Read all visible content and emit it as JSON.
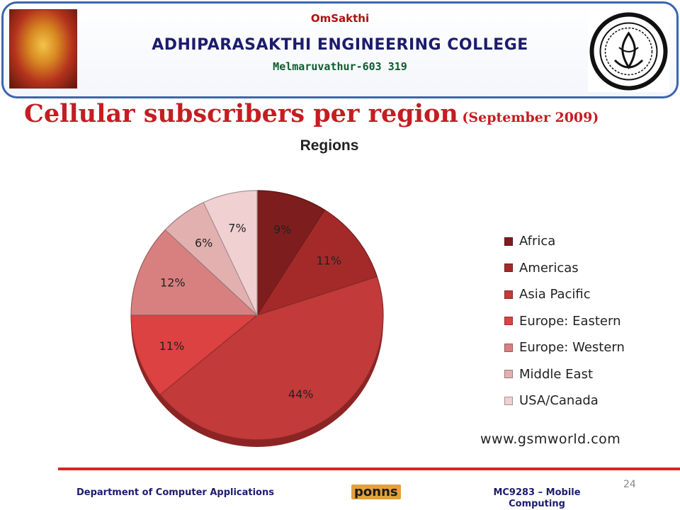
{
  "header": {
    "om_text": "OmSakthi",
    "college_name": "ADHIPARASAKTHI ENGINEERING COLLEGE",
    "location": "Melmaruvathur-603  319",
    "left_logo": "deity-portrait-icon",
    "right_logo": "college-seal-icon"
  },
  "slide": {
    "title": "Cellular subscribers per region",
    "subtitle": "(September 2009)"
  },
  "source": "www.gsmworld.com",
  "footer": {
    "department": "Department of Computer Applications",
    "brand": "ponns",
    "course": "MC9283 – Mobile Computing",
    "page_number": "24"
  },
  "chart_data": {
    "type": "pie",
    "title": "Regions",
    "legend_position": "right",
    "slices": [
      {
        "name": "Africa",
        "value": 9,
        "label": "9%",
        "color": "#7e1d1d"
      },
      {
        "name": "Americas",
        "value": 11,
        "label": "11%",
        "color": "#a42a2a"
      },
      {
        "name": "Asia Pacific",
        "value": 44,
        "label": "44%",
        "color": "#c23a3a"
      },
      {
        "name": "Europe: Eastern",
        "value": 11,
        "label": "11%",
        "color": "#dc4242"
      },
      {
        "name": "Europe: Western",
        "value": 12,
        "label": "12%",
        "color": "#d88080"
      },
      {
        "name": "Middle East",
        "value": 6,
        "label": "6%",
        "color": "#e3b0b0"
      },
      {
        "name": "USA/Canada",
        "value": 7,
        "label": "7%",
        "color": "#f0d0d0"
      }
    ]
  }
}
